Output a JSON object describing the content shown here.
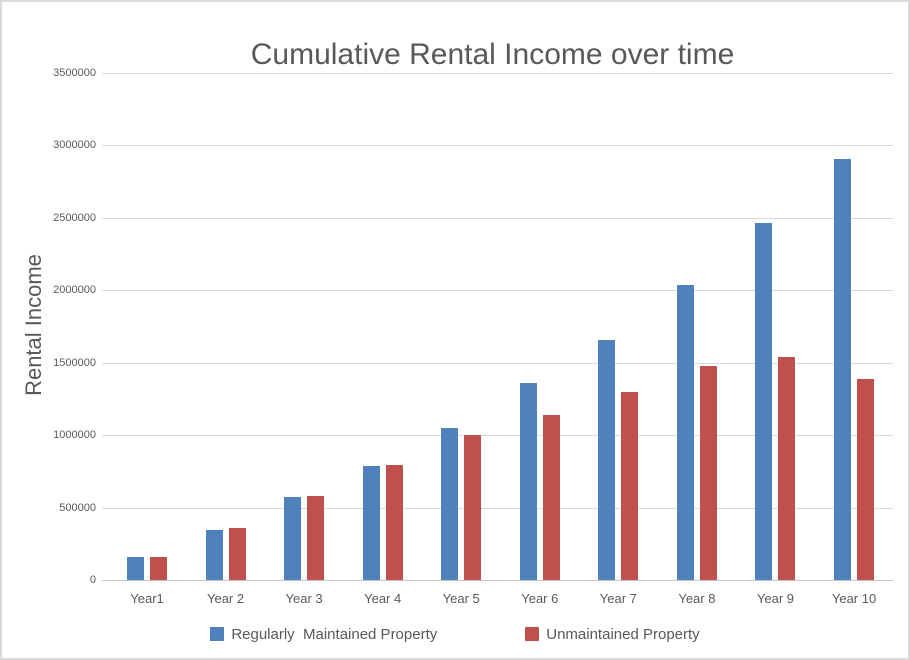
{
  "chart_data": {
    "type": "bar",
    "title": "Cumulative Rental Income over time",
    "ylabel": "Rental Income",
    "xlabel": "",
    "categories": [
      "Year1",
      "Year 2",
      "Year 3",
      "Year 4",
      "Year 5",
      "Year 6",
      "Year 7",
      "Year 8",
      "Year 9",
      "Year 10"
    ],
    "series": [
      {
        "name": "Regularly  Maintained Property",
        "color": "#4f81bd",
        "values": [
          160000,
          350000,
          575000,
          790000,
          1055000,
          1360000,
          1660000,
          2040000,
          2470000,
          2910000
        ]
      },
      {
        "name": "Unmaintained Property",
        "color": "#c0504d",
        "values": [
          160000,
          360000,
          580000,
          795000,
          1005000,
          1145000,
          1300000,
          1480000,
          1540000,
          1390000
        ]
      }
    ],
    "ylim": [
      0,
      3500000
    ],
    "y_ticks": [
      0,
      500000,
      1000000,
      1500000,
      2000000,
      2500000,
      3000000,
      3500000
    ],
    "y_tick_labels": [
      "0",
      "500000",
      "1000000",
      "1500000",
      "2000000",
      "2500000",
      "3000000",
      "3500000"
    ],
    "grid": true,
    "legend_position": "bottom"
  },
  "colors": {
    "series_maintained": "#4f81bd",
    "series_unmaintained": "#c0504d",
    "grid": "#d9d9d9",
    "axis": "#c6c6c6",
    "text": "#595959",
    "background": "#ffffff",
    "frame_border": "#d9d9d9"
  }
}
